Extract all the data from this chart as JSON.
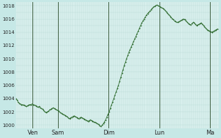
{
  "background_color": "#c6e8e6",
  "plot_bg_color": "#d8efed",
  "grid_color": "#b8d8d4",
  "line_color": "#2d6a2d",
  "marker_color": "#2d6a2d",
  "vline_color": "#3a5a3a",
  "ylim": [
    999.5,
    1018.5
  ],
  "yticks": [
    1000,
    1002,
    1004,
    1006,
    1008,
    1010,
    1012,
    1014,
    1016,
    1018
  ],
  "day_labels": [
    "Ven",
    "Sam",
    "Dim",
    "Lun",
    "Ma"
  ],
  "day_positions": [
    16,
    40,
    88,
    136,
    184
  ],
  "xlim": [
    0,
    192
  ],
  "pressure": [
    1004.0,
    1003.8,
    1003.5,
    1003.3,
    1003.2,
    1003.0,
    1003.1,
    1003.0,
    1002.9,
    1002.8,
    1002.9,
    1003.0,
    1003.1,
    1003.1,
    1003.2,
    1003.1,
    1003.0,
    1002.9,
    1002.8,
    1002.7,
    1002.8,
    1002.6,
    1002.5,
    1002.4,
    1002.2,
    1002.0,
    1001.9,
    1002.0,
    1002.1,
    1002.3,
    1002.4,
    1002.5,
    1002.6,
    1002.5,
    1002.4,
    1002.3,
    1002.2,
    1002.1,
    1001.9,
    1001.8,
    1001.7,
    1001.6,
    1001.5,
    1001.4,
    1001.3,
    1001.1,
    1001.0,
    1001.1,
    1001.2,
    1001.3,
    1001.4,
    1001.3,
    1001.2,
    1001.1,
    1001.0,
    1001.1,
    1001.2,
    1001.1,
    1001.0,
    1000.9,
    1000.8,
    1000.7,
    1000.6,
    1000.7,
    1000.8,
    1000.7,
    1000.6,
    1000.5,
    1000.4,
    1000.3,
    1000.2,
    1000.1,
    999.9,
    999.8,
    1000.0,
    1000.2,
    1000.5,
    1000.8,
    1001.2,
    1001.6,
    1002.0,
    1002.5,
    1003.0,
    1003.5,
    1004.0,
    1004.5,
    1005.0,
    1005.5,
    1006.0,
    1006.6,
    1007.2,
    1007.8,
    1008.4,
    1009.0,
    1009.5,
    1010.0,
    1010.5,
    1011.0,
    1011.4,
    1011.8,
    1012.2,
    1012.6,
    1013.0,
    1013.4,
    1013.8,
    1014.2,
    1014.6,
    1015.0,
    1015.4,
    1015.7,
    1016.0,
    1016.3,
    1016.6,
    1016.8,
    1017.0,
    1017.2,
    1017.4,
    1017.6,
    1017.8,
    1017.9,
    1018.0,
    1018.1,
    1018.0,
    1017.9,
    1017.8,
    1017.7,
    1017.6,
    1017.5,
    1017.3,
    1017.1,
    1016.9,
    1016.7,
    1016.5,
    1016.3,
    1016.1,
    1015.9,
    1015.7,
    1015.6,
    1015.5,
    1015.5,
    1015.6,
    1015.7,
    1015.8,
    1015.9,
    1016.0,
    1015.9,
    1015.7,
    1015.5,
    1015.3,
    1015.2,
    1015.1,
    1015.3,
    1015.5,
    1015.4,
    1015.2,
    1015.0,
    1015.1,
    1015.2,
    1015.3,
    1015.4,
    1015.2,
    1015.0,
    1014.8,
    1014.6,
    1014.4,
    1014.3,
    1014.2,
    1014.1,
    1014.0,
    1014.1,
    1014.2,
    1014.3,
    1014.4,
    1014.5
  ]
}
